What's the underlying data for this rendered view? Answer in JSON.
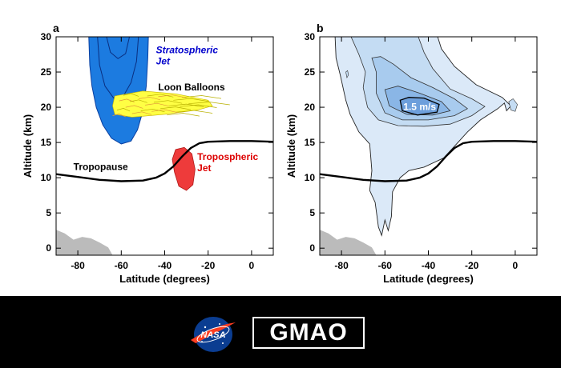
{
  "figure": {
    "background": "#ffffff"
  },
  "chart_data": [
    {
      "panel_label": "a",
      "type": "line",
      "xlabel": "Latitude (degrees)",
      "ylabel": "Altitude (km)",
      "xlim": [
        -90,
        10
      ],
      "ylim": [
        -1,
        30
      ],
      "xticks": [
        -80,
        -60,
        -40,
        -20,
        0
      ],
      "yticks": [
        0,
        5,
        10,
        15,
        20,
        25,
        30
      ],
      "series": [
        {
          "name": "Tropopause",
          "color": "#000000",
          "points": [
            [
              -90,
              10.5
            ],
            [
              -80,
              10.1
            ],
            [
              -70,
              9.7
            ],
            [
              -60,
              9.5
            ],
            [
              -50,
              9.6
            ],
            [
              -44,
              10.0
            ],
            [
              -40,
              10.6
            ],
            [
              -36,
              11.6
            ],
            [
              -32,
              13.0
            ],
            [
              -28,
              14.2
            ],
            [
              -24,
              14.9
            ],
            [
              -20,
              15.1
            ],
            [
              -10,
              15.2
            ],
            [
              0,
              15.2
            ],
            [
              10,
              15.1
            ]
          ]
        }
      ],
      "annotations": {
        "stratospheric_jet": "Stratospheric Jet",
        "loon_balloons": "Loon Balloons",
        "tropopause": "Tropopause",
        "tropospheric_jet": "Tropospheric Jet"
      },
      "colors": {
        "stratospheric_jet": "#1c7be0",
        "tropospheric_jet": "#ee3b3b",
        "stratospheric_label": "#0000cc",
        "tropospheric_label": "#dd0000",
        "balloons": "#ffff44"
      }
    },
    {
      "panel_label": "b",
      "type": "line",
      "xlabel": "Latitude (degrees)",
      "ylabel": "Altitude (km)",
      "xlim": [
        -90,
        10
      ],
      "ylim": [
        -1,
        30
      ],
      "xticks": [
        -80,
        -60,
        -40,
        -20,
        0
      ],
      "yticks": [
        0,
        5,
        10,
        15,
        20,
        25,
        30
      ],
      "series": [
        {
          "color": "#000000",
          "points": [
            [
              -90,
              10.5
            ],
            [
              -80,
              10.1
            ],
            [
              -70,
              9.7
            ],
            [
              -60,
              9.5
            ],
            [
              -50,
              9.6
            ],
            [
              -44,
              10.0
            ],
            [
              -40,
              10.6
            ],
            [
              -36,
              11.6
            ],
            [
              -32,
              13.0
            ],
            [
              -28,
              14.2
            ],
            [
              -24,
              14.9
            ],
            [
              -20,
              15.1
            ],
            [
              -10,
              15.2
            ],
            [
              0,
              15.2
            ],
            [
              10,
              15.1
            ]
          ]
        }
      ],
      "contour_label": "1.5 m/s",
      "contour_colors": [
        "#dbe9f8",
        "#c4dcf3",
        "#a8cbee",
        "#8ab6e6",
        "#6d9fdc"
      ]
    }
  ],
  "logos": {
    "nasa": "NASA",
    "gmao": "GMAO"
  }
}
